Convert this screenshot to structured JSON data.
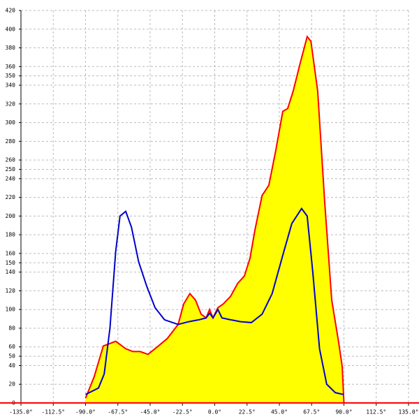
{
  "chart_data": {
    "type": "area",
    "xlim": [
      -135,
      135
    ],
    "xticks": [
      {
        "value": -135,
        "label": "-135.0°"
      },
      {
        "value": -112.5,
        "label": "-112.5°"
      },
      {
        "value": -90,
        "label": "-90.0°"
      },
      {
        "value": -67.5,
        "label": "-67.5°"
      },
      {
        "value": -45,
        "label": "-45.0°"
      },
      {
        "value": -22.5,
        "label": "-22.5°"
      },
      {
        "value": 0,
        "label": "0.0°"
      },
      {
        "value": 22.5,
        "label": "22.5°"
      },
      {
        "value": 45,
        "label": "45.0°"
      },
      {
        "value": 67.5,
        "label": "67.5°"
      },
      {
        "value": 90,
        "label": "90.0°"
      },
      {
        "value": 112.5,
        "label": "112.5°"
      },
      {
        "value": 135,
        "label": "135.0°"
      }
    ],
    "ylim": [
      0,
      420
    ],
    "yticks": [
      0,
      20,
      40,
      50,
      60,
      80,
      100,
      120,
      140,
      150,
      160,
      180,
      200,
      220,
      240,
      250,
      260,
      280,
      300,
      320,
      340,
      350,
      360,
      380,
      400,
      420
    ],
    "grid": true,
    "series": [
      {
        "color": "#ff0000",
        "fill": "#ffff00",
        "x": [
          -90,
          -84,
          -77.6,
          -74,
          -69,
          -62,
          -57,
          -52,
          -46.5,
          -40,
          -33,
          -25.5,
          -21.6,
          -17.3,
          -13.4,
          -9.5,
          -6,
          -3.6,
          -1.2,
          2.2,
          6,
          11,
          16,
          20.7,
          24.6,
          28,
          33,
          37.7,
          42.5,
          47.4,
          50.8,
          54.7,
          59.6,
          64.4,
          67,
          71.7,
          76.6,
          81.5,
          86.3,
          88.8,
          90
        ],
        "values": [
          5,
          28,
          61,
          63,
          66,
          58,
          55,
          55,
          52,
          60,
          69,
          84,
          106,
          117,
          110,
          95,
          91,
          100,
          91,
          102,
          106,
          114,
          128,
          136,
          155,
          185,
          222,
          233,
          270,
          312,
          315,
          334,
          364,
          392,
          387,
          334,
          215,
          110,
          65,
          39,
          0
        ]
      },
      {
        "color": "#0000cc",
        "x": [
          -90,
          -81,
          -77,
          -73,
          -69,
          -66,
          -62,
          -58,
          -53,
          -47.4,
          -41.6,
          -35,
          -25.5,
          -18,
          -11,
          -6,
          -3.6,
          -1.2,
          2.2,
          5,
          11,
          18,
          25.5,
          33,
          40,
          47.4,
          53.7,
          60.5,
          64.4,
          68.3,
          73,
          78,
          84,
          89.7
        ],
        "values": [
          9,
          16,
          31,
          80,
          162,
          200,
          205,
          188,
          151,
          125,
          102,
          89,
          84,
          87,
          89,
          91,
          96,
          91,
          100,
          91,
          89,
          87,
          86,
          95,
          117,
          158,
          192,
          208,
          200,
          140,
          58,
          20,
          11,
          9
        ]
      }
    ]
  }
}
